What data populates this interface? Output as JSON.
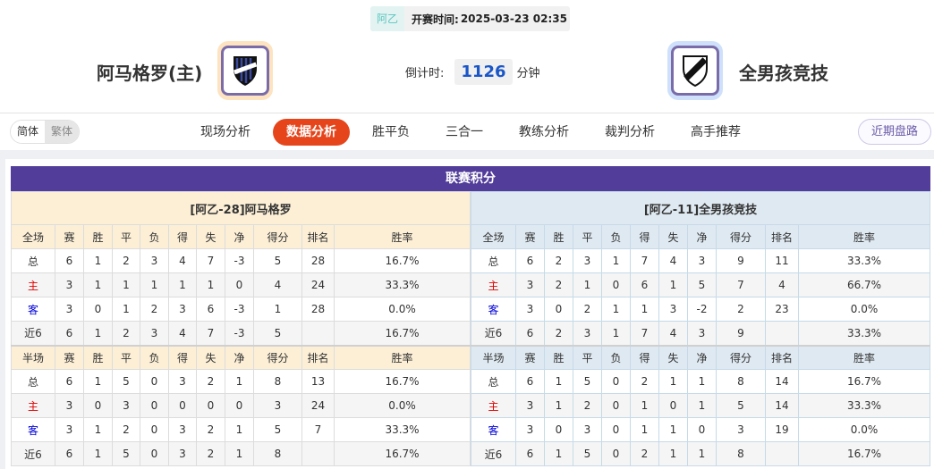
{
  "match": {
    "league": "阿乙",
    "kickoff_label": "开赛时间:",
    "kickoff": "2025-03-23 02:35",
    "countdown_label": "倒计时:",
    "countdown": "1126",
    "countdown_unit": "分钟"
  },
  "home": {
    "name": "阿马格罗(主)",
    "logo_colors": [
      "#1f2a6b",
      "#000000"
    ]
  },
  "away": {
    "name": "全男孩竞技"
  },
  "lang": {
    "simplified": "简体",
    "traditional": "繁体"
  },
  "tabs": [
    {
      "label": "现场分析"
    },
    {
      "label": "数据分析",
      "active": true
    },
    {
      "label": "胜平负"
    },
    {
      "label": "三合一"
    },
    {
      "label": "教练分析"
    },
    {
      "label": "裁判分析"
    },
    {
      "label": "高手推荐"
    }
  ],
  "recent_button": "近期盘路",
  "standings": {
    "title": "联赛积分",
    "columns": [
      "赛",
      "胜",
      "平",
      "负",
      "得",
      "失",
      "净",
      "得分",
      "排名",
      "胜率"
    ],
    "full_label": "全场",
    "half_label": "半场",
    "home_team": {
      "header": "[阿乙-28]阿马格罗",
      "full": [
        [
          "总",
          "6",
          "1",
          "2",
          "3",
          "4",
          "7",
          "-3",
          "5",
          "28",
          "16.7%"
        ],
        [
          "主",
          "3",
          "1",
          "1",
          "1",
          "1",
          "1",
          "0",
          "4",
          "24",
          "33.3%"
        ],
        [
          "客",
          "3",
          "0",
          "1",
          "2",
          "3",
          "6",
          "-3",
          "1",
          "28",
          "0.0%"
        ],
        [
          "近6",
          "6",
          "1",
          "2",
          "3",
          "4",
          "7",
          "-3",
          "5",
          "",
          "16.7%"
        ]
      ],
      "half": [
        [
          "总",
          "6",
          "1",
          "5",
          "0",
          "3",
          "2",
          "1",
          "8",
          "13",
          "16.7%"
        ],
        [
          "主",
          "3",
          "0",
          "3",
          "0",
          "0",
          "0",
          "0",
          "3",
          "24",
          "0.0%"
        ],
        [
          "客",
          "3",
          "1",
          "2",
          "0",
          "3",
          "2",
          "1",
          "5",
          "7",
          "33.3%"
        ],
        [
          "近6",
          "6",
          "1",
          "5",
          "0",
          "3",
          "2",
          "1",
          "8",
          "",
          "16.7%"
        ]
      ]
    },
    "away_team": {
      "header": "[阿乙-11]全男孩竞技",
      "full": [
        [
          "总",
          "6",
          "2",
          "3",
          "1",
          "7",
          "4",
          "3",
          "9",
          "11",
          "33.3%"
        ],
        [
          "主",
          "3",
          "2",
          "1",
          "0",
          "6",
          "1",
          "5",
          "7",
          "4",
          "66.7%"
        ],
        [
          "客",
          "3",
          "0",
          "2",
          "1",
          "1",
          "3",
          "-2",
          "2",
          "23",
          "0.0%"
        ],
        [
          "近6",
          "6",
          "2",
          "3",
          "1",
          "7",
          "4",
          "3",
          "9",
          "",
          "33.3%"
        ]
      ],
      "half": [
        [
          "总",
          "6",
          "1",
          "5",
          "0",
          "2",
          "1",
          "1",
          "8",
          "14",
          "16.7%"
        ],
        [
          "主",
          "3",
          "1",
          "2",
          "0",
          "1",
          "0",
          "1",
          "5",
          "14",
          "33.3%"
        ],
        [
          "客",
          "3",
          "0",
          "3",
          "0",
          "1",
          "1",
          "0",
          "3",
          "19",
          "0.0%"
        ],
        [
          "近6",
          "6",
          "1",
          "5",
          "0",
          "2",
          "1",
          "1",
          "8",
          "",
          "16.7%"
        ]
      ]
    }
  },
  "colors": {
    "accent": "#e6451c",
    "title_bar": "#523e9a",
    "home_text": "#e00000",
    "away_text": "#0000d8",
    "countdown": "#1a56c8"
  }
}
